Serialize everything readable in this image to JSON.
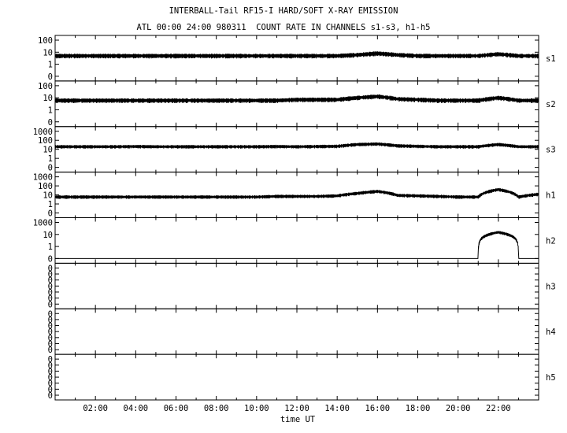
{
  "title": "INTERBALL-Tail RF15-I HARD/SOFT X-RAY EMISSION",
  "subtitle": "ATL 00:00 24:00 980311  COUNT RATE IN CHANNELS s1-s3, h1-h5",
  "chart_data": {
    "type": "line",
    "xlabel": "time UT",
    "xlim": [
      "00:00",
      "24:00"
    ],
    "x_ticks": [
      "02:00",
      "04:00",
      "06:00",
      "08:00",
      "10:00",
      "12:00",
      "14:00",
      "16:00",
      "18:00",
      "20:00",
      "22:00"
    ],
    "y_scale": "log",
    "line_color": "#000000",
    "grid": false,
    "panels": [
      {
        "channel": "s1",
        "y_tick_labels": [
          "100",
          "10",
          "1",
          "0"
        ],
        "series_hourly": [
          5,
          5,
          5,
          5,
          5,
          5,
          5,
          5,
          5,
          5,
          5,
          5,
          5,
          5,
          5,
          6,
          8,
          6,
          5,
          5,
          5,
          5,
          7,
          5,
          5
        ]
      },
      {
        "channel": "s2",
        "y_tick_labels": [
          "100",
          "10",
          "1",
          "0"
        ],
        "series_hourly": [
          6,
          6,
          6,
          6,
          6,
          6,
          6,
          6,
          6,
          6,
          6,
          6,
          7,
          7,
          7,
          10,
          13,
          8,
          7,
          6,
          6,
          6,
          10,
          6,
          6
        ]
      },
      {
        "channel": "s3",
        "y_tick_labels": [
          "1000",
          "100",
          "10",
          "1",
          "0"
        ],
        "series_hourly": [
          20,
          20,
          20,
          20,
          21,
          20,
          20,
          20,
          20,
          20,
          20,
          21,
          20,
          21,
          22,
          35,
          40,
          25,
          22,
          20,
          20,
          20,
          35,
          20,
          20
        ]
      },
      {
        "channel": "h1",
        "y_tick_labels": [
          "1000",
          "100",
          "10",
          "1",
          "0"
        ],
        "series_hourly": [
          6,
          6,
          6,
          6,
          6,
          6,
          6,
          6,
          6,
          6,
          6,
          7,
          7,
          7,
          8,
          15,
          25,
          9,
          8,
          7,
          6,
          6,
          40,
          6,
          12
        ]
      },
      {
        "channel": "h2",
        "y_tick_labels": [
          "1000",
          "10",
          "1",
          "0"
        ],
        "series_hourly": [
          0,
          0,
          0,
          0,
          0,
          0,
          0,
          0,
          0,
          0,
          0,
          0,
          0,
          0,
          0,
          0,
          0,
          0,
          0,
          0,
          0,
          0,
          60,
          0,
          0
        ]
      },
      {
        "channel": "h3",
        "y_tick_labels": [
          "0",
          "0",
          "0",
          "0",
          "0",
          "0",
          "0"
        ],
        "series_hourly": []
      },
      {
        "channel": "h4",
        "y_tick_labels": [
          "0",
          "0",
          "0",
          "0",
          "0",
          "0",
          "0"
        ],
        "series_hourly": []
      },
      {
        "channel": "h5",
        "y_tick_labels": [
          "0",
          "0",
          "0",
          "0",
          "0",
          "0",
          "0"
        ],
        "series_hourly": []
      }
    ]
  }
}
